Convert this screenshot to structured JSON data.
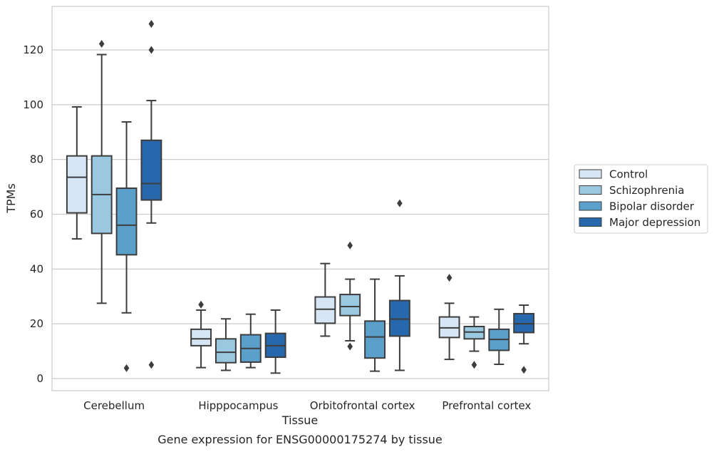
{
  "chart_data": {
    "type": "box",
    "xlabel": "Tissue",
    "ylabel": "TPMs",
    "caption": "Gene expression for ENSG00000175274 by tissue",
    "ylim": [
      -4,
      135
    ],
    "yticks": [
      0,
      20,
      40,
      60,
      80,
      100,
      120
    ],
    "grid": "horizontal",
    "legend_position": "right",
    "categories": [
      "Cerebellum",
      "Hipppocampus",
      "Orbitofrontal cortex",
      "Prefrontal cortex"
    ],
    "series": [
      {
        "name": "Control",
        "color": "#d6e6f4",
        "boxes": [
          {
            "whislo": 51,
            "q1": 60.5,
            "med": 73.5,
            "q3": 81.3,
            "whishi": 99.2,
            "fliers": []
          },
          {
            "whislo": 4,
            "q1": 12,
            "med": 14.5,
            "q3": 18,
            "whishi": 25,
            "fliers": [
              27
            ]
          },
          {
            "whislo": 15.5,
            "q1": 20.2,
            "med": 25.3,
            "q3": 29.8,
            "whishi": 42,
            "fliers": []
          },
          {
            "whislo": 7,
            "q1": 15,
            "med": 18.5,
            "q3": 22.5,
            "whishi": 27.5,
            "fliers": [
              36.8
            ]
          }
        ]
      },
      {
        "name": "Schizophrenia",
        "color": "#9ac8e0",
        "boxes": [
          {
            "whislo": 27.5,
            "q1": 53,
            "med": 67.2,
            "q3": 81.3,
            "whishi": 118.3,
            "fliers": [
              122.2
            ]
          },
          {
            "whislo": 3,
            "q1": 5.8,
            "med": 9.6,
            "q3": 14.5,
            "whishi": 21.8,
            "fliers": []
          },
          {
            "whislo": 13.8,
            "q1": 23,
            "med": 26.3,
            "q3": 30.7,
            "whishi": 36.3,
            "fliers": [
              48.6,
              11.7
            ]
          },
          {
            "whislo": 10,
            "q1": 14.5,
            "med": 17,
            "q3": 19,
            "whishi": 22.5,
            "fliers": [
              5
            ]
          }
        ]
      },
      {
        "name": "Bipolar disorder",
        "color": "#5b9fcb",
        "boxes": [
          {
            "whislo": 24,
            "q1": 45.2,
            "med": 56,
            "q3": 69.5,
            "whishi": 93.7,
            "fliers": [
              3.8
            ]
          },
          {
            "whislo": 4,
            "q1": 6,
            "med": 11,
            "q3": 16,
            "whishi": 23.5,
            "fliers": []
          },
          {
            "whislo": 2.7,
            "q1": 7.5,
            "med": 15.2,
            "q3": 21,
            "whishi": 36.3,
            "fliers": []
          },
          {
            "whislo": 5.2,
            "q1": 10.3,
            "med": 14.3,
            "q3": 18,
            "whishi": 25.3,
            "fliers": []
          }
        ]
      },
      {
        "name": "Major depression",
        "color": "#2767ab",
        "boxes": [
          {
            "whislo": 56.8,
            "q1": 65.2,
            "med": 71.2,
            "q3": 87,
            "whishi": 101.5,
            "fliers": [
              120,
              129.5,
              5
            ]
          },
          {
            "whislo": 2,
            "q1": 7.8,
            "med": 12,
            "q3": 16.5,
            "whishi": 25,
            "fliers": []
          },
          {
            "whislo": 3,
            "q1": 15.5,
            "med": 21.7,
            "q3": 28.5,
            "whishi": 37.5,
            "fliers": [
              64
            ]
          },
          {
            "whislo": 12.7,
            "q1": 16.8,
            "med": 20,
            "q3": 23.7,
            "whishi": 26.8,
            "fliers": [
              3.2
            ]
          }
        ]
      }
    ]
  }
}
